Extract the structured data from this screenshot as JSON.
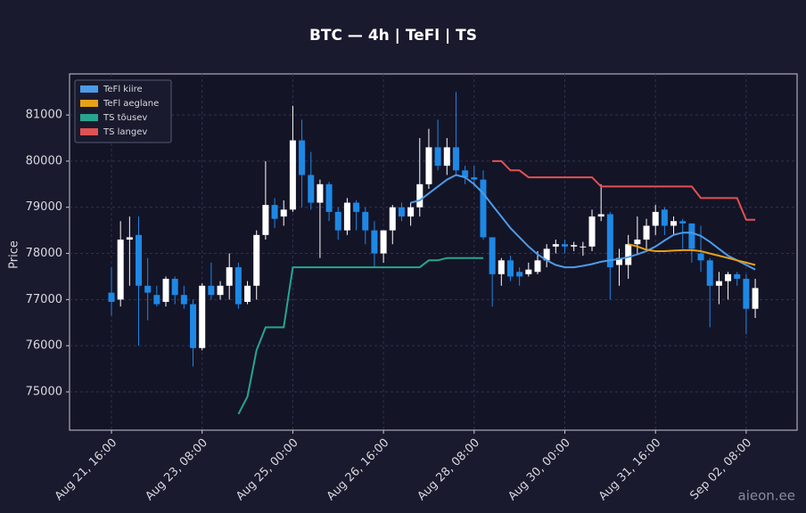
{
  "chart_data": {
    "type": "candlestick",
    "title": "BTC — 4h  |  TeFl  |  TS",
    "ylabel": "Price",
    "watermark": "aieon.ee",
    "x": [
      "Aug 21, 16:00",
      "Aug 21, 20:00",
      "Aug 22, 00:00",
      "Aug 22, 04:00",
      "Aug 22, 08:00",
      "Aug 22, 12:00",
      "Aug 22, 16:00",
      "Aug 22, 20:00",
      "Aug 23, 00:00",
      "Aug 23, 04:00",
      "Aug 23, 08:00",
      "Aug 23, 12:00",
      "Aug 23, 16:00",
      "Aug 23, 20:00",
      "Aug 24, 00:00",
      "Aug 24, 04:00",
      "Aug 24, 08:00",
      "Aug 24, 12:00",
      "Aug 24, 16:00",
      "Aug 24, 20:00",
      "Aug 25, 00:00",
      "Aug 25, 04:00",
      "Aug 25, 08:00",
      "Aug 25, 12:00",
      "Aug 25, 16:00",
      "Aug 25, 20:00",
      "Aug 26, 00:00",
      "Aug 26, 04:00",
      "Aug 26, 08:00",
      "Aug 26, 12:00",
      "Aug 26, 16:00",
      "Aug 26, 20:00",
      "Aug 27, 00:00",
      "Aug 27, 04:00",
      "Aug 27, 08:00",
      "Aug 27, 12:00",
      "Aug 27, 16:00",
      "Aug 27, 20:00",
      "Aug 28, 00:00",
      "Aug 28, 04:00",
      "Aug 28, 08:00",
      "Aug 28, 12:00",
      "Aug 28, 16:00",
      "Aug 28, 20:00",
      "Aug 29, 00:00",
      "Aug 29, 04:00",
      "Aug 29, 08:00",
      "Aug 29, 12:00",
      "Aug 29, 16:00",
      "Aug 29, 20:00",
      "Aug 30, 00:00",
      "Aug 30, 04:00",
      "Aug 30, 08:00",
      "Aug 30, 12:00",
      "Aug 30, 16:00",
      "Aug 30, 20:00",
      "Aug 31, 00:00",
      "Aug 31, 04:00",
      "Aug 31, 08:00",
      "Aug 31, 12:00",
      "Aug 31, 16:00",
      "Aug 31, 20:00",
      "Sep 01, 00:00",
      "Sep 01, 04:00",
      "Sep 01, 08:00",
      "Sep 01, 12:00",
      "Sep 01, 16:00",
      "Sep 01, 20:00",
      "Sep 02, 00:00",
      "Sep 02, 04:00",
      "Sep 02, 08:00",
      "Sep 02, 12:00"
    ],
    "open": [
      77150,
      77000,
      78300,
      78400,
      77300,
      77100,
      76950,
      77450,
      77100,
      76900,
      75950,
      77300,
      77100,
      77300,
      77700,
      76950,
      77300,
      78400,
      79050,
      78800,
      78950,
      80450,
      79700,
      79100,
      79500,
      78900,
      78500,
      79100,
      78900,
      78500,
      78000,
      78500,
      79000,
      78800,
      79000,
      79500,
      80300,
      79900,
      80300,
      79800,
      79650,
      79600,
      78350,
      77550,
      77850,
      77600,
      77550,
      77600,
      77850,
      78150,
      78200,
      78150,
      78150,
      78150,
      78800,
      78850,
      77750,
      77750,
      78200,
      78300,
      78600,
      78950,
      78600,
      78700,
      78650,
      78000,
      77850,
      77300,
      77400,
      77550,
      77450,
      76800
    ],
    "high": [
      77700,
      78700,
      78800,
      78800,
      77900,
      77300,
      77500,
      77500,
      77300,
      77000,
      77350,
      77800,
      77400,
      78000,
      77800,
      77400,
      78500,
      80000,
      79200,
      79150,
      81200,
      80900,
      80200,
      79600,
      79550,
      79000,
      79200,
      79150,
      79000,
      78700,
      78500,
      79050,
      79100,
      79100,
      80500,
      80700,
      80900,
      80500,
      81500,
      79900,
      79900,
      79800,
      78350,
      77900,
      77950,
      77700,
      77800,
      78050,
      78200,
      78300,
      78300,
      78250,
      78250,
      78950,
      79500,
      78900,
      78100,
      78400,
      78800,
      78750,
      79050,
      79000,
      78800,
      78750,
      78650,
      78600,
      77900,
      77600,
      77600,
      77600,
      77550,
      77450
    ],
    "low": [
      76650,
      76850,
      77300,
      76000,
      76550,
      76850,
      76850,
      76900,
      76800,
      75550,
      75900,
      77000,
      77000,
      77000,
      76800,
      76900,
      77000,
      78300,
      78550,
      78600,
      78900,
      79000,
      78950,
      77900,
      78700,
      78300,
      78400,
      78500,
      78200,
      77700,
      77800,
      78200,
      78700,
      78600,
      78800,
      79400,
      79800,
      79700,
      79700,
      79500,
      79450,
      78300,
      76850,
      77300,
      77400,
      77300,
      77500,
      77550,
      77700,
      78000,
      78000,
      78050,
      77950,
      78050,
      78700,
      77000,
      77300,
      77450,
      78000,
      78100,
      78400,
      78400,
      78400,
      78100,
      77800,
      77600,
      76400,
      76900,
      77000,
      77300,
      76250,
      76600
    ],
    "close": [
      76950,
      78300,
      78350,
      77300,
      77150,
      76900,
      77450,
      77100,
      76900,
      75950,
      77300,
      77100,
      77300,
      77700,
      76900,
      77300,
      78400,
      79050,
      78750,
      78950,
      80450,
      79700,
      79100,
      79500,
      78900,
      78500,
      79100,
      78900,
      78500,
      78000,
      78500,
      79000,
      78800,
      79000,
      79500,
      80300,
      79900,
      80300,
      79800,
      79650,
      79600,
      78350,
      77550,
      77850,
      77500,
      77500,
      77650,
      77850,
      78100,
      78200,
      78150,
      78180,
      78150,
      78800,
      78850,
      77700,
      77900,
      78200,
      78300,
      78600,
      78900,
      78600,
      78700,
      78650,
      78100,
      77850,
      77300,
      77400,
      77550,
      77450,
      76800,
      77250
    ],
    "up_color": "#ffffff",
    "down_color": "#1e88e5",
    "series": [
      {
        "name": "TeFl kiire",
        "color": "#4c9be8",
        "values": [
          null,
          null,
          null,
          null,
          null,
          null,
          null,
          null,
          null,
          null,
          null,
          null,
          null,
          null,
          null,
          null,
          null,
          null,
          null,
          null,
          null,
          null,
          null,
          null,
          null,
          null,
          null,
          null,
          null,
          null,
          null,
          null,
          null,
          79100,
          79150,
          79300,
          79450,
          79600,
          79700,
          79650,
          79500,
          79300,
          79050,
          78800,
          78550,
          78350,
          78150,
          77980,
          77850,
          77750,
          77700,
          77700,
          77730,
          77770,
          77820,
          77850,
          77880,
          77920,
          77980,
          78050,
          78150,
          78280,
          78400,
          78450,
          78450,
          78380,
          78250,
          78100,
          77950,
          77850,
          77750,
          77650
        ]
      },
      {
        "name": "TeFl aeglane",
        "color": "#e6a116",
        "values": [
          null,
          null,
          null,
          null,
          null,
          null,
          null,
          null,
          null,
          null,
          null,
          null,
          null,
          null,
          null,
          null,
          null,
          null,
          null,
          null,
          null,
          null,
          null,
          null,
          null,
          null,
          null,
          null,
          null,
          null,
          null,
          null,
          null,
          null,
          null,
          null,
          null,
          null,
          null,
          null,
          null,
          null,
          null,
          null,
          null,
          null,
          null,
          null,
          null,
          null,
          null,
          null,
          null,
          null,
          null,
          null,
          null,
          78200,
          78150,
          78080,
          78050,
          78050,
          78060,
          78070,
          78070,
          78050,
          78000,
          77950,
          77900,
          77850,
          77800,
          77750
        ]
      },
      {
        "name": "TS tõusev",
        "color": "#26a68f",
        "values": [
          null,
          null,
          null,
          null,
          null,
          null,
          null,
          null,
          null,
          null,
          null,
          null,
          null,
          null,
          74520,
          74900,
          75900,
          76400,
          76400,
          76400,
          77700,
          77700,
          77700,
          77700,
          77700,
          77700,
          77700,
          77700,
          77700,
          77700,
          77700,
          77700,
          77700,
          77700,
          77700,
          77850,
          77850,
          77900,
          77900,
          77900,
          77900,
          77900,
          null,
          null,
          null,
          null,
          null,
          null,
          null,
          null,
          null,
          null,
          null,
          null,
          null,
          null,
          null,
          null,
          null,
          null,
          null,
          null,
          null,
          null,
          null,
          null,
          null,
          null,
          null,
          null,
          null,
          null
        ]
      },
      {
        "name": "TS langev",
        "color": "#e05252",
        "values": [
          null,
          null,
          null,
          null,
          null,
          null,
          null,
          null,
          null,
          null,
          null,
          null,
          null,
          null,
          null,
          null,
          null,
          null,
          null,
          null,
          null,
          null,
          null,
          null,
          null,
          null,
          null,
          null,
          null,
          null,
          null,
          null,
          null,
          null,
          null,
          null,
          null,
          null,
          null,
          null,
          null,
          null,
          80000,
          80000,
          79800,
          79800,
          79650,
          79650,
          79650,
          79650,
          79650,
          79650,
          79650,
          79650,
          79450,
          79450,
          79450,
          79450,
          79450,
          79450,
          79450,
          79450,
          79450,
          79450,
          79450,
          79200,
          79200,
          79200,
          79200,
          79200,
          78730,
          78730
        ]
      }
    ],
    "ylim": [
      74170,
      81890
    ],
    "yticks": [
      75000,
      76000,
      77000,
      78000,
      79000,
      80000,
      81000
    ],
    "grid": true,
    "legend": "upper left"
  }
}
